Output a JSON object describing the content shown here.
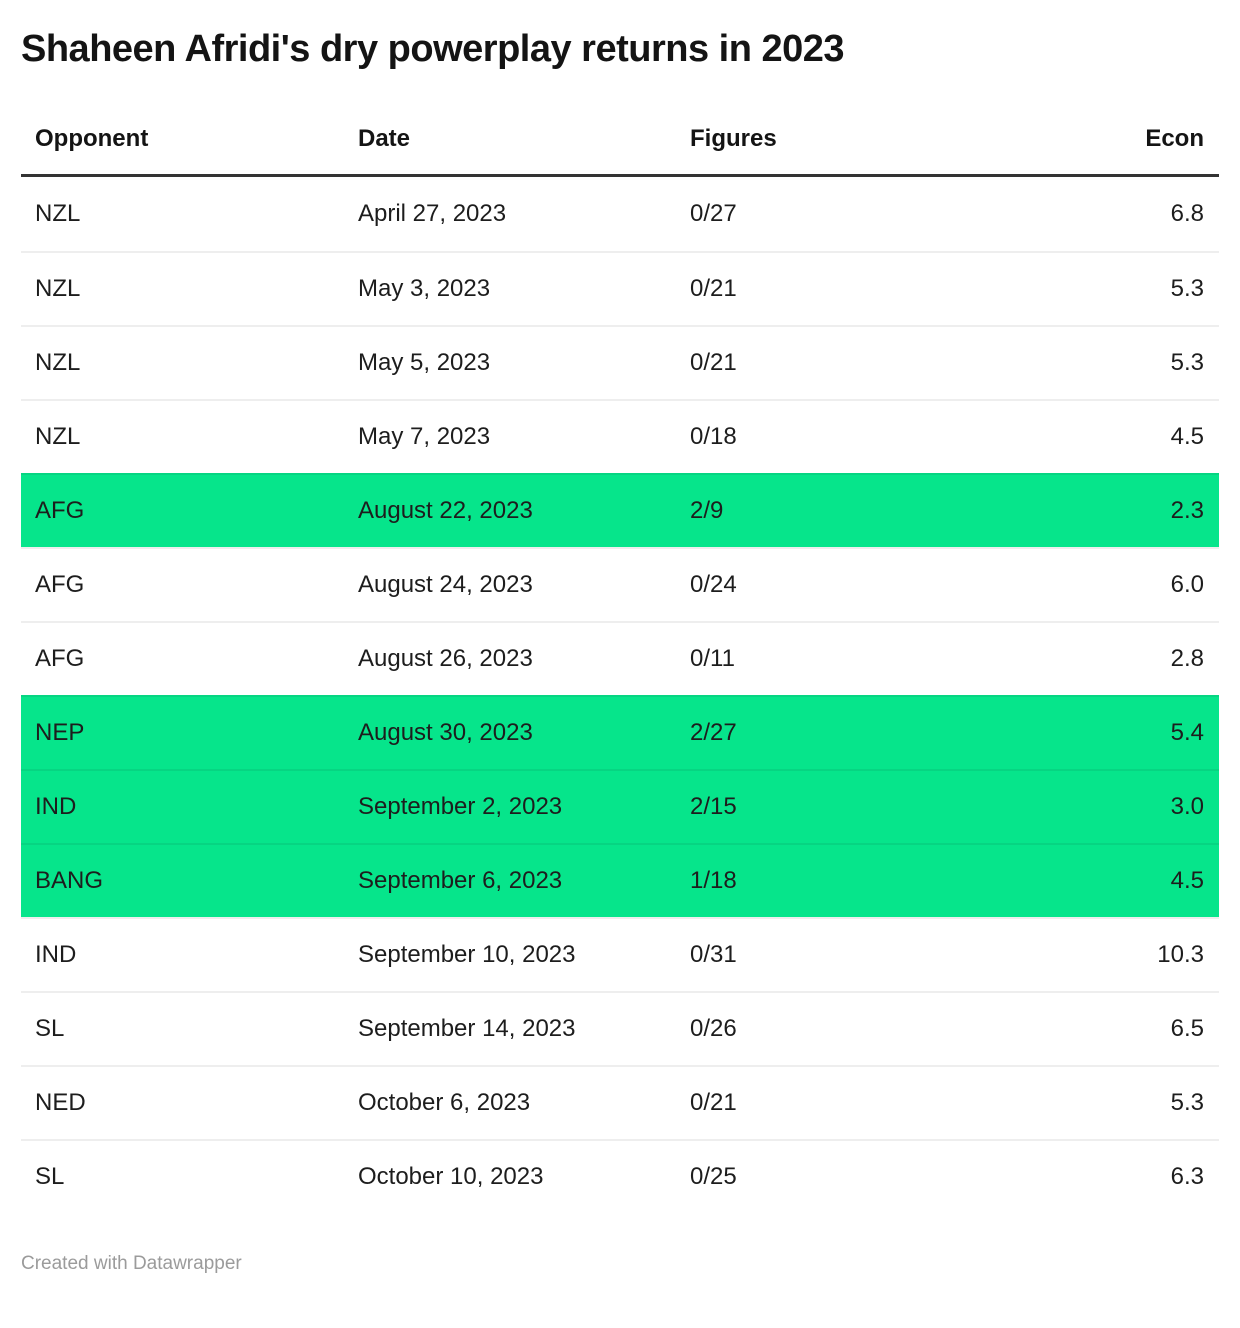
{
  "chart_data": {
    "type": "table",
    "title": "Shaheen Afridi's dry powerplay returns in 2023",
    "columns": [
      "Opponent",
      "Date",
      "Figures",
      "Econ"
    ],
    "rows": [
      {
        "opponent": "NZL",
        "date": "April 27, 2023",
        "figures": "0/27",
        "econ": "6.8",
        "highlighted": false
      },
      {
        "opponent": "NZL",
        "date": "May 3, 2023",
        "figures": "0/21",
        "econ": "5.3",
        "highlighted": false
      },
      {
        "opponent": "NZL",
        "date": "May 5, 2023",
        "figures": "0/21",
        "econ": "5.3",
        "highlighted": false
      },
      {
        "opponent": "NZL",
        "date": "May 7, 2023",
        "figures": "0/18",
        "econ": "4.5",
        "highlighted": false
      },
      {
        "opponent": "AFG",
        "date": "August 22, 2023",
        "figures": "2/9",
        "econ": "2.3",
        "highlighted": true
      },
      {
        "opponent": "AFG",
        "date": "August 24, 2023",
        "figures": "0/24",
        "econ": "6.0",
        "highlighted": false
      },
      {
        "opponent": "AFG",
        "date": "August 26, 2023",
        "figures": "0/11",
        "econ": "2.8",
        "highlighted": false
      },
      {
        "opponent": "NEP",
        "date": "August 30, 2023",
        "figures": "2/27",
        "econ": "5.4",
        "highlighted": true
      },
      {
        "opponent": "IND",
        "date": "September 2, 2023",
        "figures": "2/15",
        "econ": "3.0",
        "highlighted": true
      },
      {
        "opponent": "BANG",
        "date": "September 6, 2023",
        "figures": "1/18",
        "econ": "4.5",
        "highlighted": true
      },
      {
        "opponent": "IND",
        "date": "September 10, 2023",
        "figures": "0/31",
        "econ": "10.3",
        "highlighted": false
      },
      {
        "opponent": "SL",
        "date": "September 14, 2023",
        "figures": "0/26",
        "econ": "6.5",
        "highlighted": false
      },
      {
        "opponent": "NED",
        "date": "October 6, 2023",
        "figures": "0/21",
        "econ": "5.3",
        "highlighted": false
      },
      {
        "opponent": "SL",
        "date": "October 10, 2023",
        "figures": "0/25",
        "econ": "6.3",
        "highlighted": false
      }
    ],
    "legend_position": "none",
    "grid": "horizontal-separators"
  },
  "footer": {
    "text": "Created with Datawrapper"
  },
  "colors": {
    "highlight_green": "#06e58b",
    "header_rule": "#333333",
    "row_separator": "#eeeeee",
    "text": "#1d1d1d",
    "footer_text": "#9b9b9b"
  }
}
